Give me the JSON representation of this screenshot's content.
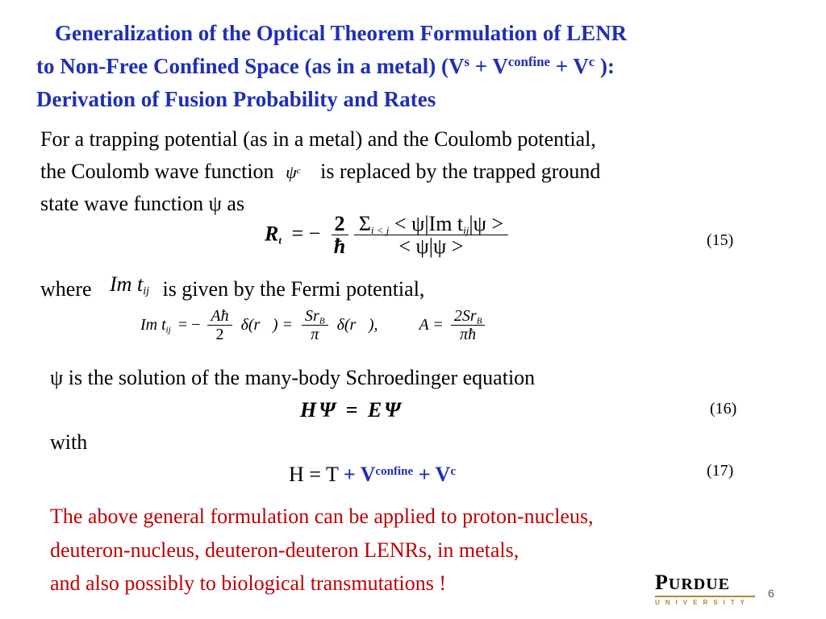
{
  "title": {
    "line1": "Generalization of the Optical Theorem Formulation of LENR",
    "line2_prefix": "to Non-Free Confined Space (as in a metal)  (V",
    "line2_s": "s",
    "line2_mid1": " + V",
    "line2_confine": "confine",
    "line2_mid2": " + V",
    "line2_c": "c",
    "line2_end": " ):",
    "line3": "Derivation of Fusion Probability and Rates"
  },
  "para1": {
    "line1": "For  a trapping potential (as in a metal) and the Coulomb potential,",
    "line2_a": "the Coulomb wave function",
    "psi_c_symbol": "ψ",
    "psi_c_sup": "c",
    "line2_b": "is replaced by the trapped ground",
    "line3": "state wave function ψ as"
  },
  "eq15": {
    "lhs": "R",
    "lhs_sub": "t",
    "equals": "= −",
    "coef_num": "2",
    "coef_den": "ħ",
    "num": "Σ",
    "num_sub": "i < j",
    "num_expr": " < ψ|Im t",
    "num_expr_sub": "ij",
    "num_expr_end": "|ψ >",
    "den": "< ψ|ψ >",
    "number": "(15)"
  },
  "where": {
    "word": "where",
    "sym": "Im t",
    "sym_sub": "ij",
    "text": "is given by the Fermi potential,"
  },
  "fermi": {
    "lhs": "Im t",
    "lhs_sub": "ij",
    "eq1": "= −",
    "f1_num": "Aħ",
    "f1_den": "2",
    "delta1": "δ(r⃗) =",
    "f2_num": "Sr",
    "f2_num_sub": "B",
    "f2_den": "π",
    "delta2": "δ(r⃗),",
    "a_lhs": "A =",
    "f3_num": "2Sr",
    "f3_num_sub": "B",
    "f3_den": "πħ"
  },
  "psi_line": "ψ  is the solution of the many-body Schroedinger equation",
  "eq16": {
    "expr": "HΨ = EΨ",
    "number": "(16)"
  },
  "with": "with",
  "eq17": {
    "prefix": "H = T ",
    "plus1": "+ V",
    "confine": "confine",
    "plus2": " + V",
    "c": "c",
    "number": "(17)"
  },
  "conclusion": {
    "line1": "The above general formulation can be applied to proton-nucleus,",
    "line2": "deuteron-nucleus, deuteron-deuteron LENRs, in metals,",
    "line3": "and also possibly to biological transmutations !"
  },
  "logo": {
    "word_P": "P",
    "word_rest": "URDUE",
    "sub": "UNIVERSITY"
  },
  "slide_number": "6",
  "colors": {
    "title": "#1f2fb5",
    "conclusion": "#c00000",
    "logo_gold": "#b08a2e"
  }
}
